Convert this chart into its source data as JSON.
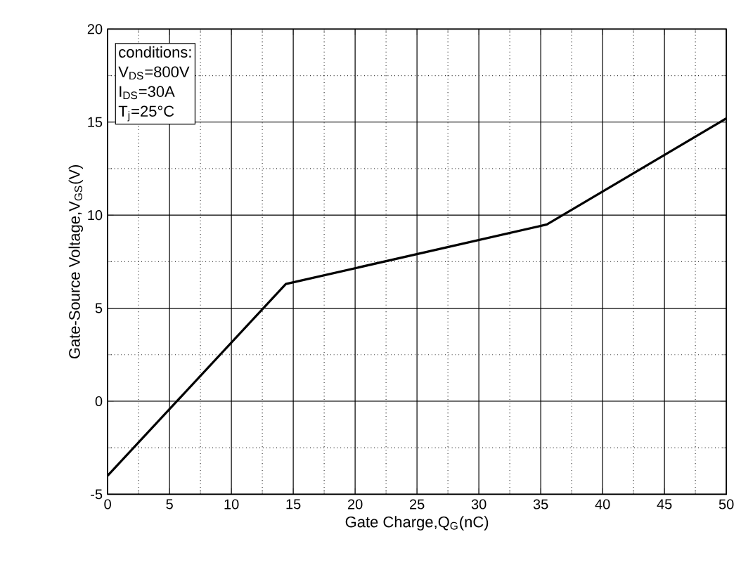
{
  "chart_data": {
    "type": "line",
    "xlabel": "Gate Charge,Q$_{G}$(nC)",
    "ylabel": "Gate-Source Voltage,V$_{GS}$(V)",
    "x": [
      0,
      14.4,
      35.5,
      50
    ],
    "series": [
      {
        "color": "#000000",
        "values": [
          -4,
          6.3,
          9.5,
          15.2
        ]
      }
    ],
    "xlim": [
      0,
      50
    ],
    "ylim": [
      -5,
      20
    ],
    "xticks": [
      0,
      5,
      10,
      15,
      20,
      25,
      30,
      35,
      40,
      45,
      50
    ],
    "yticks": [
      -5,
      0,
      5,
      10,
      15,
      20
    ],
    "grid": true,
    "line_style": "solid",
    "marker": "none",
    "annotations": [
      "conditions:",
      "V$_{DS}$=800V",
      "I$_{DS}$=30A",
      "T$_{j}$=25°C"
    ]
  }
}
